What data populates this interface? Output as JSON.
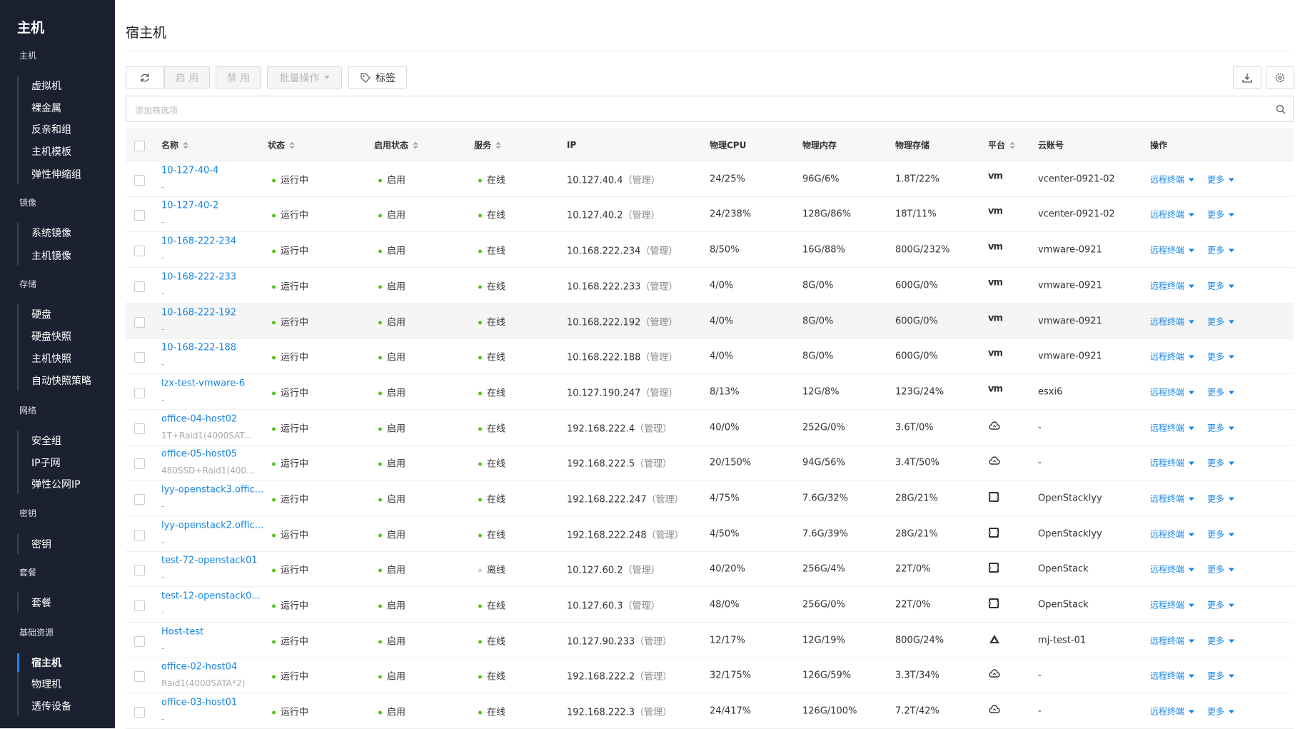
{
  "sidebar": {
    "title": "主机",
    "groups": [
      {
        "label": "主机",
        "items": [
          "虚拟机",
          "裸金属",
          "反亲和组",
          "主机模板",
          "弹性伸缩组"
        ]
      },
      {
        "label": "镜像",
        "items": [
          "系统镜像",
          "主机镜像"
        ]
      },
      {
        "label": "存储",
        "items": [
          "硬盘",
          "硬盘快照",
          "主机快照",
          "自动快照策略"
        ]
      },
      {
        "label": "网络",
        "items": [
          "安全组",
          "IP子网",
          "弹性公网IP"
        ]
      },
      {
        "label": "密钥",
        "items": [
          "密钥"
        ]
      },
      {
        "label": "套餐",
        "items": [
          "套餐"
        ]
      },
      {
        "label": "基础资源",
        "items": [
          "宿主机",
          "物理机",
          "透传设备"
        ]
      }
    ],
    "active": "宿主机"
  },
  "header": {
    "title": "宿主机"
  },
  "toolbar": {
    "buttons": [
      "启 用",
      "禁 用",
      "批量操作",
      "标签"
    ],
    "search_placeholder": "添加筛选项"
  },
  "table": {
    "columns": [
      "名称",
      "状态",
      "启用状态",
      "服务",
      "IP",
      "物理CPU",
      "物理内存",
      "物理存储",
      "平台",
      "云账号",
      "操作"
    ],
    "row_actions": [
      "远程终端",
      "更多"
    ],
    "rows": [
      {
        "name": "10-127-40-4",
        "sub": "-",
        "status": "运行中",
        "enabled": "启用",
        "service": "在线",
        "service_dot": "#52c41a",
        "ip": "10.127.40.4",
        "ip_note": "（管理）",
        "cpu": "24/25%",
        "mem": "96G/6%",
        "storage": "1.8T/22%",
        "platform": "vm",
        "account": "vcenter-0921-02"
      },
      {
        "name": "10-127-40-2",
        "sub": "-",
        "status": "运行中",
        "enabled": "启用",
        "service": "在线",
        "service_dot": "#52c41a",
        "ip": "10.127.40.2",
        "ip_note": "（管理）",
        "cpu": "24/238%",
        "mem": "128G/86%",
        "storage": "18T/11%",
        "platform": "vm",
        "account": "vcenter-0921-02"
      },
      {
        "name": "10-168-222-234",
        "sub": "-",
        "status": "运行中",
        "enabled": "启用",
        "service": "在线",
        "service_dot": "#52c41a",
        "ip": "10.168.222.234",
        "ip_note": "（管理）",
        "cpu": "8/50%",
        "mem": "16G/88%",
        "storage": "800G/232%",
        "platform": "vm",
        "account": "vmware-0921"
      },
      {
        "name": "10-168-222-233",
        "sub": "-",
        "status": "运行中",
        "enabled": "启用",
        "service": "在线",
        "service_dot": "#52c41a",
        "ip": "10.168.222.233",
        "ip_note": "（管理）",
        "cpu": "4/0%",
        "mem": "8G/0%",
        "storage": "600G/0%",
        "platform": "vm",
        "account": "vmware-0921"
      },
      {
        "name": "10-168-222-192",
        "sub": "-",
        "status": "运行中",
        "enabled": "启用",
        "service": "在线",
        "service_dot": "#52c41a",
        "ip": "10.168.222.192",
        "ip_note": "（管理）",
        "cpu": "4/0%",
        "mem": "8G/0%",
        "storage": "600G/0%",
        "platform": "vm",
        "account": "vmware-0921",
        "hover": true
      },
      {
        "name": "10-168-222-188",
        "sub": "-",
        "status": "运行中",
        "enabled": "启用",
        "service": "在线",
        "service_dot": "#52c41a",
        "ip": "10.168.222.188",
        "ip_note": "（管理）",
        "cpu": "4/0%",
        "mem": "8G/0%",
        "storage": "600G/0%",
        "platform": "vm",
        "account": "vmware-0921"
      },
      {
        "name": "lzx-test-vmware-6",
        "sub": "-",
        "status": "运行中",
        "enabled": "启用",
        "service": "在线",
        "service_dot": "#52c41a",
        "ip": "10.127.190.247",
        "ip_note": "（管理）",
        "cpu": "8/13%",
        "mem": "12G/8%",
        "storage": "123G/24%",
        "platform": "vm",
        "account": "esxi6"
      },
      {
        "name": "office-04-host02",
        "sub": "1T+Raid1(4000SAT...",
        "status": "运行中",
        "enabled": "启用",
        "service": "在线",
        "service_dot": "#52c41a",
        "ip": "192.168.222.4",
        "ip_note": "（管理）",
        "cpu": "40/0%",
        "mem": "252G/0%",
        "storage": "3.6T/0%",
        "platform": "cloud",
        "account": "-"
      },
      {
        "name": "office-05-host05",
        "sub": "480SSD+Raid1(400...",
        "status": "运行中",
        "enabled": "启用",
        "service": "在线",
        "service_dot": "#52c41a",
        "ip": "192.168.222.5",
        "ip_note": "（管理）",
        "cpu": "20/150%",
        "mem": "94G/56%",
        "storage": "3.4T/50%",
        "platform": "cloud",
        "account": "-"
      },
      {
        "name": "lyy-openstack3.offic...",
        "sub": "-",
        "status": "运行中",
        "enabled": "启用",
        "service": "在线",
        "service_dot": "#52c41a",
        "ip": "192.168.222.247",
        "ip_note": "（管理）",
        "cpu": "4/75%",
        "mem": "7.6G/32%",
        "storage": "28G/21%",
        "platform": "openstack",
        "account": "OpenStacklyy"
      },
      {
        "name": "lyy-openstack2.offic...",
        "sub": "-",
        "status": "运行中",
        "enabled": "启用",
        "service": "在线",
        "service_dot": "#52c41a",
        "ip": "192.168.222.248",
        "ip_note": "（管理）",
        "cpu": "4/50%",
        "mem": "7.6G/39%",
        "storage": "28G/21%",
        "platform": "openstack",
        "account": "OpenStacklyy"
      },
      {
        "name": "test-72-openstack01",
        "sub": "-",
        "status": "运行中",
        "enabled": "启用",
        "service": "离线",
        "service_dot": "#cccccc",
        "ip": "10.127.60.2",
        "ip_note": "（管理）",
        "cpu": "40/20%",
        "mem": "256G/4%",
        "storage": "22T/0%",
        "platform": "openstack",
        "account": "OpenStack"
      },
      {
        "name": "test-12-openstack0...",
        "sub": "-",
        "status": "运行中",
        "enabled": "启用",
        "service": "在线",
        "service_dot": "#52c41a",
        "ip": "10.127.60.3",
        "ip_note": "（管理）",
        "cpu": "48/0%",
        "mem": "256G/0%",
        "storage": "22T/0%",
        "platform": "openstack",
        "account": "OpenStack"
      },
      {
        "name": "Host-test",
        "sub": "-",
        "status": "运行中",
        "enabled": "启用",
        "service": "在线",
        "service_dot": "#52c41a",
        "ip": "10.127.90.233",
        "ip_note": "（管理）",
        "cpu": "12/17%",
        "mem": "12G/19%",
        "storage": "800G/24%",
        "platform": "triangle",
        "account": "mj-test-01"
      },
      {
        "name": "office-02-host04",
        "sub": "Raid1(4000SATA*2)",
        "status": "运行中",
        "enabled": "启用",
        "service": "在线",
        "service_dot": "#52c41a",
        "ip": "192.168.222.2",
        "ip_note": "（管理）",
        "cpu": "32/175%",
        "mem": "126G/59%",
        "storage": "3.3T/34%",
        "platform": "cloud",
        "account": "-"
      },
      {
        "name": "office-03-host01",
        "sub": "-",
        "status": "运行中",
        "enabled": "启用",
        "service": "在线",
        "service_dot": "#52c41a",
        "ip": "192.168.222.3",
        "ip_note": "（管理）",
        "cpu": "24/417%",
        "mem": "126G/100%",
        "storage": "7.2T/42%",
        "platform": "cloud",
        "account": "-"
      }
    ]
  }
}
